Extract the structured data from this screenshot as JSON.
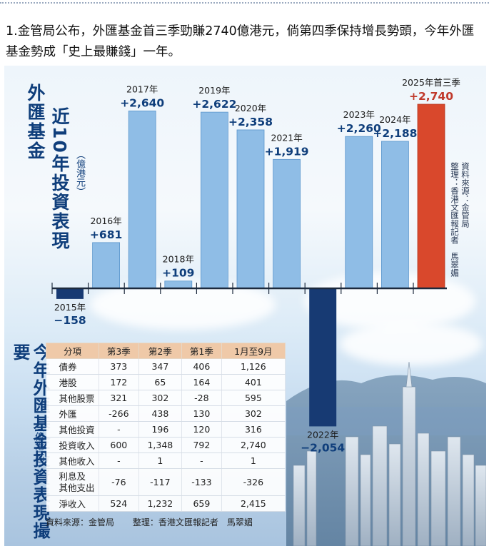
{
  "caption": "1.金管局公布，外匯基金首三季勁賺2740億港元，倘第四季保持增長勢頭，今年外匯基金勢成「史上最賺錢」一年。",
  "colors": {
    "bar": "#8fbde6",
    "bar_edge": "#5a95cc",
    "negative": "#173a73",
    "highlight": "#d9482c",
    "highlight_text": "#c0392b",
    "text": "#0f3e7b"
  },
  "chart_title": {
    "main": "外匯基金",
    "sub": "近10年投資表現",
    "unit": "（億港元）"
  },
  "source_right": {
    "line1": "資料來源：金管局",
    "line2": "整理：香港文匯報記者　馬翠媚"
  },
  "chart_data": {
    "type": "bar",
    "title": "外匯基金 近10年投資表現",
    "ylabel": "億港元",
    "categories": [
      "2015年",
      "2016年",
      "2017年",
      "2018年",
      "2019年",
      "2020年",
      "2021年",
      "2022年",
      "2023年",
      "2024年",
      "2025年首三季"
    ],
    "values": [
      -158,
      681,
      2640,
      109,
      2622,
      2358,
      1919,
      -2054,
      2260,
      2188,
      2740
    ],
    "value_labels": [
      "−158",
      "+681",
      "+2,640",
      "+109",
      "+2,622",
      "+2,358",
      "+1,919",
      "−2,054",
      "+2,260",
      "+2,188",
      "+2,740"
    ],
    "highlight_index": 10,
    "ylim": [
      -2054,
      2740
    ]
  },
  "summary": {
    "title": "今年外匯基金投資表現撮要",
    "unit": "（億港元）",
    "headers": [
      "分項",
      "第3季",
      "第2季",
      "第1季",
      "1月至9月"
    ],
    "rows": [
      [
        "債券",
        "373",
        "347",
        "406",
        "1,126"
      ],
      [
        "港股",
        "172",
        "65",
        "164",
        "401"
      ],
      [
        "其他股票",
        "321",
        "302",
        "-28",
        "595"
      ],
      [
        "外匯",
        "-266",
        "438",
        "130",
        "302"
      ],
      [
        "其他投資",
        "-",
        "196",
        "120",
        "316"
      ],
      [
        "投資收入",
        "600",
        "1,348",
        "792",
        "2,740"
      ],
      [
        "其他收入",
        "-",
        "1",
        "-",
        "1"
      ],
      [
        "利息及\n其他支出",
        "-76",
        "-117",
        "-133",
        "-326"
      ],
      [
        "淨收入",
        "524",
        "1,232",
        "659",
        "2,415"
      ]
    ],
    "footer_source": "資料來源：金管局",
    "footer_editor": "整理：香港文匯報記者　馬翠媚"
  }
}
